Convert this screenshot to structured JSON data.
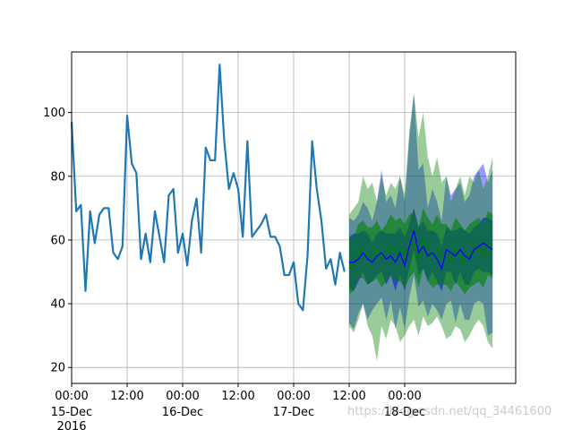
{
  "chart_data": {
    "type": "line",
    "title": "",
    "xlabel": "",
    "ylabel": "",
    "grid": true,
    "ylim": [
      15,
      119
    ],
    "xlim_hours": [
      0,
      96
    ],
    "x_ticks": [
      {
        "hour": 0,
        "label": "00:00",
        "sub": "15-Dec",
        "sub2": "2016"
      },
      {
        "hour": 12,
        "label": "12:00",
        "sub": "",
        "sub2": ""
      },
      {
        "hour": 24,
        "label": "00:00",
        "sub": "16-Dec",
        "sub2": ""
      },
      {
        "hour": 36,
        "label": "12:00",
        "sub": "",
        "sub2": ""
      },
      {
        "hour": 48,
        "label": "00:00",
        "sub": "17-Dec",
        "sub2": ""
      },
      {
        "hour": 60,
        "label": "12:00",
        "sub": "",
        "sub2": ""
      },
      {
        "hour": 72,
        "label": "00:00",
        "sub": "18-Dec",
        "sub2": ""
      }
    ],
    "y_ticks": [
      20,
      40,
      60,
      80,
      100
    ],
    "observed": {
      "color": "#1f77b4",
      "step_hours": 1,
      "values": [
        97,
        69,
        71,
        44,
        69,
        59,
        68,
        70,
        70,
        56,
        54,
        58,
        99,
        84,
        81,
        54,
        62,
        53,
        69,
        61,
        53,
        74,
        76,
        56,
        62,
        52,
        66,
        73,
        56,
        89,
        85,
        85,
        115,
        91,
        76,
        81,
        76,
        61,
        91,
        61,
        63,
        65,
        68,
        61,
        61,
        58,
        49,
        49,
        53,
        40,
        38,
        55,
        91,
        76,
        66,
        51,
        54,
        46,
        56,
        50
      ]
    },
    "forecast_a": {
      "color": "#0000ff",
      "start_hour": 60,
      "step_hours": 1,
      "mean": [
        53,
        53,
        54,
        56,
        54,
        53,
        55,
        56,
        54,
        55,
        53,
        56,
        52,
        58,
        63,
        56,
        58,
        55,
        56,
        54,
        51,
        57,
        56,
        55,
        57,
        55,
        54,
        57,
        58,
        59,
        58,
        57
      ],
      "inner_lo": [
        45,
        44,
        47,
        50,
        46,
        47,
        49,
        50,
        46,
        49,
        44,
        49,
        44,
        51,
        57,
        49,
        51,
        47,
        50,
        47,
        44,
        50,
        50,
        46,
        50,
        46,
        46,
        50,
        51,
        50,
        50,
        49
      ],
      "inner_hi": [
        61,
        62,
        62,
        63,
        62,
        59,
        62,
        63,
        62,
        62,
        62,
        64,
        61,
        65,
        70,
        64,
        66,
        63,
        63,
        62,
        58,
        64,
        63,
        63,
        64,
        63,
        62,
        64,
        65,
        67,
        67,
        66
      ],
      "outer_lo": [
        34,
        32,
        37,
        40,
        35,
        38,
        40,
        42,
        35,
        41,
        32,
        39,
        32,
        42,
        49,
        39,
        41,
        36,
        40,
        38,
        35,
        40,
        41,
        34,
        40,
        35,
        35,
        40,
        41,
        40,
        30,
        31
      ],
      "outer_hi": [
        67,
        66,
        68,
        72,
        70,
        66,
        72,
        82,
        72,
        74,
        70,
        80,
        72,
        92,
        106,
        82,
        84,
        70,
        76,
        72,
        66,
        80,
        74,
        76,
        78,
        72,
        74,
        80,
        82,
        84,
        78,
        82
      ]
    },
    "forecast_b": {
      "color": "#008000",
      "start_hour": 60,
      "step_hours": 1,
      "mean": [
        51,
        52,
        56,
        57,
        55,
        55,
        57,
        54,
        56,
        58,
        56,
        57,
        55,
        58,
        59,
        54,
        60,
        57,
        55,
        57,
        55,
        55,
        53,
        57,
        55,
        53,
        55,
        56,
        57,
        55,
        59,
        58
      ],
      "inner_lo": [
        43,
        44,
        48,
        48,
        46,
        47,
        48,
        45,
        47,
        49,
        47,
        47,
        45,
        48,
        50,
        45,
        51,
        47,
        45,
        46,
        46,
        46,
        44,
        47,
        45,
        43,
        45,
        46,
        47,
        45,
        49,
        48
      ],
      "inner_hi": [
        61,
        61,
        65,
        66,
        64,
        64,
        66,
        63,
        65,
        68,
        66,
        67,
        65,
        68,
        69,
        64,
        70,
        67,
        65,
        68,
        65,
        65,
        63,
        67,
        65,
        63,
        65,
        66,
        67,
        65,
        69,
        68
      ],
      "outer_lo": [
        33,
        31,
        35,
        40,
        33,
        30,
        22,
        33,
        29,
        35,
        33,
        28,
        30,
        33,
        35,
        30,
        36,
        33,
        34,
        36,
        33,
        29,
        30,
        33,
        32,
        28,
        30,
        33,
        35,
        33,
        28,
        26
      ],
      "outer_hi": [
        68,
        70,
        72,
        80,
        76,
        78,
        72,
        80,
        74,
        78,
        76,
        80,
        74,
        94,
        106,
        92,
        100,
        86,
        80,
        86,
        78,
        80,
        72,
        76,
        80,
        74,
        80,
        78,
        82,
        76,
        80,
        86
      ]
    }
  },
  "watermark": "https://blog.csdn.net/qq_34461600"
}
